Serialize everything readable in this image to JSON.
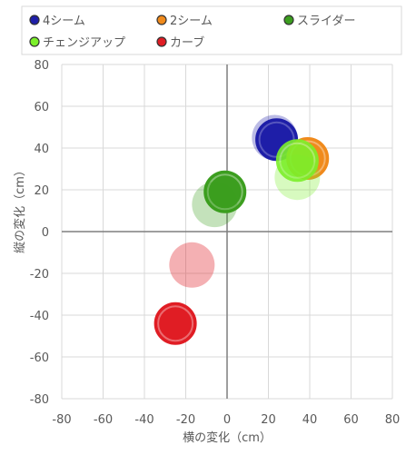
{
  "chart_data": {
    "type": "scatter",
    "xlabel": "横の変化（cm）",
    "ylabel": "縦の変化（cm）",
    "xlim": [
      -80,
      80
    ],
    "ylim": [
      -80,
      80
    ],
    "xticks": [
      -80,
      -60,
      -40,
      -20,
      0,
      20,
      40,
      60,
      80
    ],
    "yticks": [
      -80,
      -60,
      -40,
      -20,
      0,
      20,
      40,
      60,
      80
    ],
    "grid": true,
    "legend_position": "top",
    "series": [
      {
        "name": "4シーム",
        "color": "#1f1fa8",
        "points": [
          {
            "x": 24,
            "y": 44,
            "alpha": 1.0
          },
          {
            "x": 23,
            "y": 45,
            "alpha": 0.3
          }
        ]
      },
      {
        "name": "2シーム",
        "color": "#f08a1c",
        "points": [
          {
            "x": 39,
            "y": 35,
            "alpha": 1.0
          }
        ]
      },
      {
        "name": "スライダー",
        "color": "#3c9e1f",
        "points": [
          {
            "x": -1,
            "y": 19,
            "alpha": 1.0
          },
          {
            "x": -6,
            "y": 13,
            "alpha": 0.3
          }
        ]
      },
      {
        "name": "チェンジアップ",
        "color": "#7cf02a",
        "points": [
          {
            "x": 34,
            "y": 34,
            "alpha": 0.9
          },
          {
            "x": 34,
            "y": 26,
            "alpha": 0.3
          }
        ]
      },
      {
        "name": "カーブ",
        "color": "#e01d24",
        "points": [
          {
            "x": -25,
            "y": -44,
            "alpha": 1.0
          },
          {
            "x": -17,
            "y": -16,
            "alpha": 0.35
          }
        ]
      }
    ]
  }
}
